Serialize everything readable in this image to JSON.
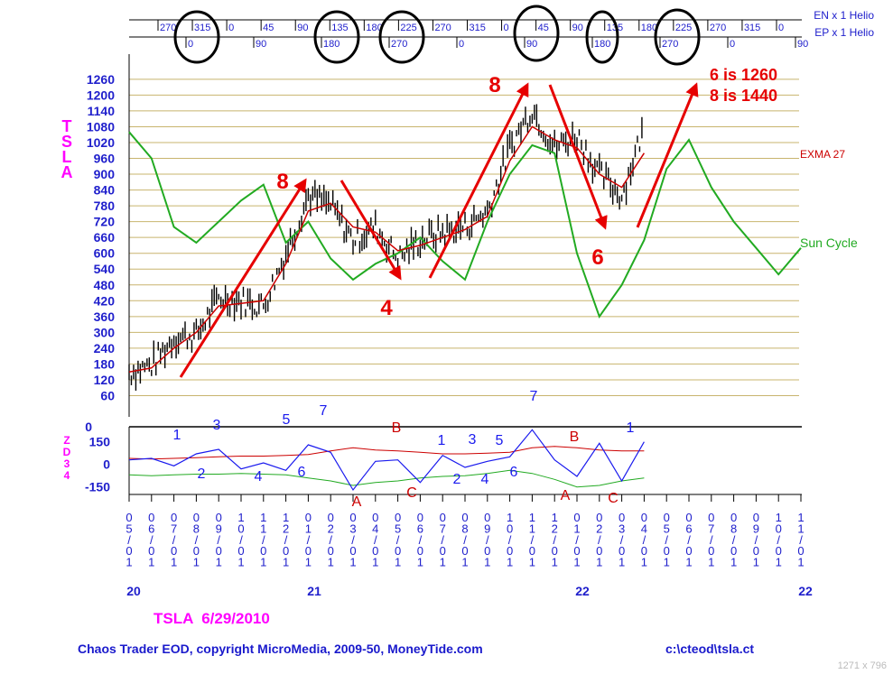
{
  "helio": {
    "en_label": "EN x 1 Helio",
    "ep_label": "EP x 1 Helio",
    "en_ticks": [
      "270",
      "315",
      "0",
      "45",
      "90",
      "135",
      "180",
      "225",
      "270",
      "315",
      "0",
      "45",
      "90",
      "135",
      "180",
      "225",
      "270",
      "315",
      "0"
    ],
    "ep_ticks": [
      "0",
      "90",
      "180",
      "270",
      "0",
      "90",
      "180",
      "270",
      "0",
      "90"
    ]
  },
  "price_panel": {
    "symbol_vertical": "TSLA",
    "y_ticks": [
      60,
      120,
      180,
      240,
      300,
      360,
      420,
      480,
      540,
      600,
      660,
      720,
      780,
      840,
      900,
      960,
      1020,
      1080,
      1140,
      1200,
      1260
    ],
    "ylim": [
      0,
      1280
    ],
    "exma_label": "EXMA 27",
    "sun_label": "Sun Cycle",
    "target_line1": "6 is 1260",
    "target_line2": "8 is 1440",
    "annotations": [
      "8",
      "4",
      "8",
      "6"
    ]
  },
  "osc_panel": {
    "label_vertical": "ZD34",
    "y_ticks": [
      "150",
      "0",
      "-150"
    ],
    "top_tick": "0",
    "blue_labels": [
      "1",
      "2",
      "3",
      "4",
      "5",
      "6",
      "7",
      "1",
      "2",
      "3",
      "4",
      "5",
      "6",
      "7",
      "1"
    ],
    "red_labels": [
      "A",
      "B",
      "C",
      "A",
      "B",
      "C"
    ]
  },
  "x_axis": {
    "months": [
      "05/01",
      "06/01",
      "07/01",
      "08/01",
      "09/01",
      "10/01",
      "11/01",
      "12/01",
      "01/01",
      "02/01",
      "03/01",
      "04/01",
      "05/01",
      "06/01",
      "07/01",
      "08/01",
      "09/01",
      "10/01",
      "11/01",
      "12/01",
      "01/01",
      "02/01",
      "03/01",
      "04/01",
      "05/01",
      "06/01",
      "07/01",
      "08/01",
      "09/01",
      "10/01",
      "11/01"
    ],
    "years": [
      "20",
      "21",
      "22",
      "22"
    ]
  },
  "footer": {
    "ticker_line": "TSLA  6/29/2010",
    "copyright": "Chaos Trader EOD, copyright MicroMedia, 2009-50, MoneyTide.com",
    "path": "c:\\cteod\\tsla.ct",
    "dims": "1271 x 796"
  },
  "colors": {
    "price_bars": "#000000",
    "exma": "#cc0000",
    "sun_cycle": "#22aa22",
    "oscillator": "#1a1aee",
    "osc_red": "#cc0000",
    "osc_green": "#22aa22",
    "grid": "#c8b46e",
    "axis_text": "#2020cc",
    "magenta": "#ff00ff",
    "annotation": "#e60000"
  },
  "chart_data": {
    "type": "line",
    "title": "",
    "x": [
      "05/01/20",
      "06/01/20",
      "07/01/20",
      "08/01/20",
      "09/01/20",
      "10/01/20",
      "11/01/20",
      "12/01/20",
      "01/01/21",
      "02/01/21",
      "03/01/21",
      "04/01/21",
      "05/01/21",
      "06/01/21",
      "07/01/21",
      "08/01/21",
      "09/01/21",
      "10/01/21",
      "11/01/21",
      "12/01/21",
      "01/01/22",
      "02/01/22",
      "03/01/22",
      "04/01/22",
      "05/01/22",
      "06/01/22",
      "07/01/22",
      "08/01/22",
      "09/01/22",
      "10/01/22",
      "11/01/22"
    ],
    "series": [
      {
        "name": "TSLA",
        "values": [
          150,
          175,
          280,
          290,
          430,
          420,
          400,
          600,
          820,
          780,
          650,
          700,
          580,
          650,
          680,
          700,
          760,
          1000,
          1150,
          1000,
          1050,
          900,
          820,
          1080,
          null,
          null,
          null,
          null,
          null,
          null,
          null
        ]
      },
      {
        "name": "EXMA 27",
        "values": [
          150,
          165,
          240,
          300,
          400,
          410,
          420,
          560,
          760,
          790,
          700,
          680,
          610,
          630,
          660,
          690,
          740,
          950,
          1080,
          1030,
          1000,
          900,
          850,
          980,
          null,
          null,
          null,
          null,
          null,
          null,
          null
        ]
      },
      {
        "name": "Sun Cycle",
        "values": [
          1060,
          960,
          700,
          640,
          720,
          800,
          860,
          640,
          720,
          580,
          500,
          560,
          600,
          660,
          570,
          500,
          720,
          900,
          1010,
          980,
          600,
          360,
          480,
          650,
          920,
          1030,
          850,
          720,
          620,
          520,
          620
        ]
      }
    ],
    "ylim": [
      0,
      1280
    ]
  },
  "osc_data": {
    "x": [
      "05/01/20",
      "06/01/20",
      "07/01/20",
      "08/01/20",
      "09/01/20",
      "10/01/20",
      "11/01/20",
      "12/01/20",
      "01/01/21",
      "02/01/21",
      "03/01/21",
      "04/01/21",
      "05/01/21",
      "06/01/21",
      "07/01/21",
      "08/01/21",
      "09/01/21",
      "10/01/21",
      "11/01/21",
      "12/01/21",
      "01/01/22",
      "02/01/22",
      "03/01/22",
      "04/01/22"
    ],
    "series": [
      {
        "name": "ZD34",
        "values": [
          30,
          40,
          -10,
          70,
          100,
          -30,
          10,
          -40,
          130,
          80,
          -170,
          20,
          30,
          -120,
          60,
          -20,
          20,
          50,
          230,
          30,
          -80,
          140,
          -110,
          150
        ]
      },
      {
        "name": "red",
        "values": [
          40,
          35,
          40,
          45,
          50,
          55,
          55,
          60,
          65,
          90,
          110,
          95,
          90,
          80,
          70,
          70,
          75,
          80,
          110,
          120,
          110,
          95,
          90,
          90
        ]
      },
      {
        "name": "green",
        "values": [
          -70,
          -75,
          -70,
          -65,
          -65,
          -60,
          -65,
          -70,
          -90,
          -110,
          -140,
          -120,
          -110,
          -90,
          -80,
          -75,
          -60,
          -40,
          -60,
          -100,
          -150,
          -140,
          -110,
          -90
        ]
      }
    ],
    "ylim": [
      -200,
      250
    ]
  }
}
